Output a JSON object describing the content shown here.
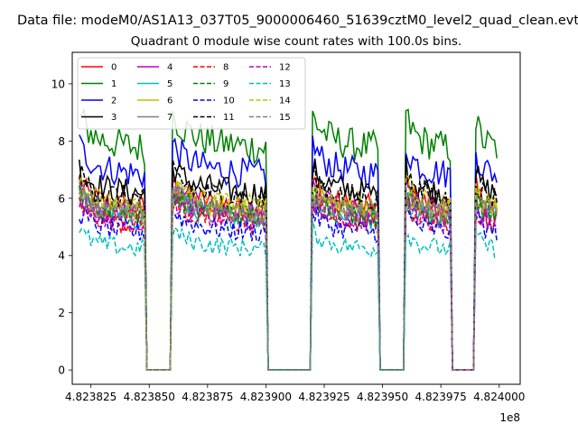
{
  "figure": {
    "suptitle": "Data file: modeM0/AS1A13_037T05_9000006460_51639cztM0_level2_quad_clean.evt"
  },
  "chart_data": {
    "type": "line",
    "title": "Quadrant 0 module wise count rates with 100.0s bins.",
    "xlabel": "",
    "ylabel": "",
    "x_offset_label": "1e8",
    "xlim": [
      482381700,
      482400900
    ],
    "ylim": [
      -0.5,
      11.1
    ],
    "x_ticks": [
      482382500,
      482385000,
      482387500,
      482390000,
      482392500,
      482395000,
      482397500,
      482400000
    ],
    "x_tick_labels": [
      "4.823825",
      "4.823850",
      "4.823875",
      "4.823900",
      "4.823925",
      "4.823950",
      "4.823975",
      "4.824000"
    ],
    "y_ticks": [
      0,
      2,
      4,
      6,
      8,
      10
    ],
    "y_tick_labels": [
      "0",
      "2",
      "4",
      "6",
      "8",
      "10"
    ],
    "grid": false,
    "legend_placement": "top-left",
    "legend_columns": 4,
    "active_intervals": [
      [
        482381950,
        482384850
      ],
      [
        482385950,
        482390050
      ],
      [
        482391950,
        482394850
      ],
      [
        482395950,
        482397950
      ],
      [
        482398950,
        482399950
      ]
    ],
    "series": [
      {
        "name": "0",
        "color": "#ff0000",
        "dash": "solid",
        "level": 5.9
      },
      {
        "name": "1",
        "color": "#008000",
        "dash": "solid",
        "level": 7.9
      },
      {
        "name": "2",
        "color": "#0000ff",
        "dash": "solid",
        "level": 7.1
      },
      {
        "name": "3",
        "color": "#000000",
        "dash": "solid",
        "level": 6.4
      },
      {
        "name": "4",
        "color": "#bf00bf",
        "dash": "solid",
        "level": 5.7
      },
      {
        "name": "5",
        "color": "#00bfbf",
        "dash": "solid",
        "level": 5.5
      },
      {
        "name": "6",
        "color": "#bfbf00",
        "dash": "solid",
        "level": 5.8
      },
      {
        "name": "7",
        "color": "#808080",
        "dash": "solid",
        "level": 5.6
      },
      {
        "name": "8",
        "color": "#ff0000",
        "dash": "dashed",
        "level": 5.3
      },
      {
        "name": "9",
        "color": "#008000",
        "dash": "dashed",
        "level": 5.6
      },
      {
        "name": "10",
        "color": "#0000ff",
        "dash": "dashed",
        "level": 5.0
      },
      {
        "name": "11",
        "color": "#000000",
        "dash": "dashed",
        "level": 6.2
      },
      {
        "name": "12",
        "color": "#bf00bf",
        "dash": "dashed",
        "level": 5.4
      },
      {
        "name": "13",
        "color": "#00bfbf",
        "dash": "dashed",
        "level": 4.4
      },
      {
        "name": "14",
        "color": "#bfbf00",
        "dash": "dashed",
        "level": 5.9
      },
      {
        "name": "15",
        "color": "#808080",
        "dash": "dashed",
        "level": 5.7
      }
    ]
  }
}
